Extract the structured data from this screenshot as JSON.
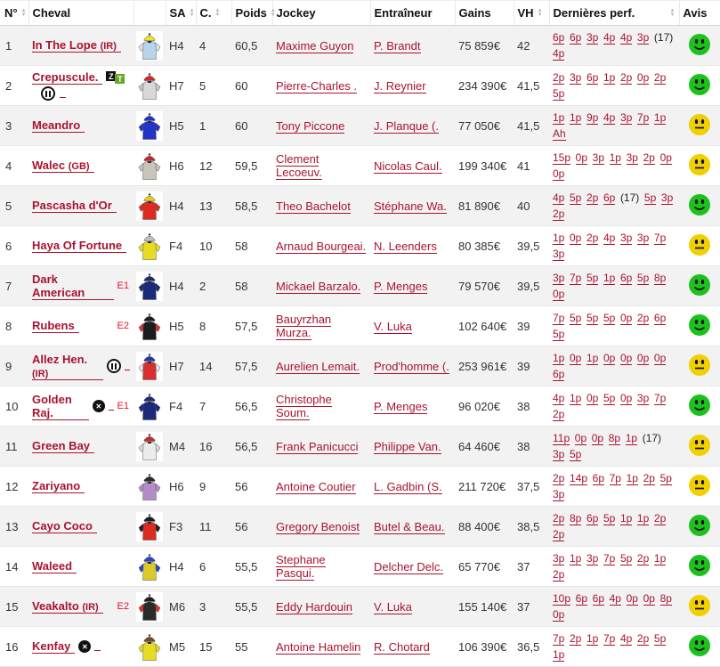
{
  "colors": {
    "link": "#a8142f",
    "tag_red": "#e8112d",
    "row_alt": "#f2f2f2",
    "smiley_green": "#1dc11d",
    "smiley_yellow": "#f0d000"
  },
  "table": {
    "columns": [
      {
        "key": "num",
        "label": "N°",
        "sortable": true
      },
      {
        "key": "cheval",
        "label": "Cheval",
        "sortable": false
      },
      {
        "key": "silks",
        "label": "",
        "sortable": false
      },
      {
        "key": "sa",
        "label": "SA",
        "sortable": true
      },
      {
        "key": "c",
        "label": "C.",
        "sortable": true
      },
      {
        "key": "poids",
        "label": "Poids",
        "sortable": true
      },
      {
        "key": "jockey",
        "label": "Jockey",
        "sortable": false
      },
      {
        "key": "trainer",
        "label": "Entraîneur",
        "sortable": false
      },
      {
        "key": "gains",
        "label": "Gains",
        "sortable": false
      },
      {
        "key": "vh",
        "label": "VH",
        "sortable": true
      },
      {
        "key": "perf",
        "label": "Dernières perf.",
        "sortable": true
      },
      {
        "key": "avis",
        "label": "Avis",
        "sortable": false
      }
    ],
    "rows": [
      {
        "num": "1",
        "horse": "In The Lope",
        "suffix": "(IR)",
        "zt": false,
        "blinkers": null,
        "circlex": false,
        "tag": "",
        "silks": {
          "cap": "#f2e31b",
          "body": "#b9d3ea",
          "sleeve": "#d8e6f4"
        },
        "sa": "H4",
        "c": "4",
        "poids": "60,5",
        "jockey": "Maxime Guyon",
        "trainer": "P. Brandt",
        "gains": "75 859€",
        "vh": "42",
        "perf": [
          "6p",
          "6p",
          "3p",
          "4p",
          "4p",
          "3p",
          "(17)",
          "4p"
        ],
        "avis": "green"
      },
      {
        "num": "2",
        "horse": "Crepuscule.",
        "suffix": "",
        "zt": true,
        "blinkers": "below",
        "circlex": false,
        "tag": "",
        "silks": {
          "cap": "#d42a2a",
          "body": "#d8d8d8",
          "sleeve": "#c9c9c9"
        },
        "sa": "H7",
        "c": "5",
        "poids": "60",
        "jockey": "Pierre-Charles .",
        "trainer": "J. Reynier",
        "gains": "234 390€",
        "vh": "41,5",
        "perf": [
          "2p",
          "3p",
          "6p",
          "1p",
          "2p",
          "0p",
          "2p",
          "5p"
        ],
        "avis": "green"
      },
      {
        "num": "3",
        "horse": "Meandro",
        "suffix": "",
        "zt": false,
        "blinkers": null,
        "circlex": false,
        "tag": "",
        "silks": {
          "cap": "#2433c8",
          "body": "#2433c8",
          "sleeve": "#2433c8"
        },
        "sa": "H5",
        "c": "1",
        "poids": "60",
        "jockey": "Tony Piccone",
        "trainer": "J. Planque (.",
        "gains": "77 050€",
        "vh": "41,5",
        "perf": [
          "1p",
          "1p",
          "9p",
          "4p",
          "3p",
          "7p",
          "1p",
          "Ah"
        ],
        "avis": "yellow"
      },
      {
        "num": "4",
        "horse": "Walec",
        "suffix": "(GB)",
        "zt": false,
        "blinkers": null,
        "circlex": false,
        "tag": "",
        "silks": {
          "cap": "#c8252f",
          "body": "#c9c4bc",
          "sleeve": "#c9c4bc"
        },
        "sa": "H6",
        "c": "12",
        "poids": "59,5",
        "jockey": "Clement Lecoeuv.",
        "trainer": "Nicolas Caul.",
        "gains": "199 340€",
        "vh": "41",
        "perf": [
          "15p",
          "0p",
          "3p",
          "1p",
          "3p",
          "2p",
          "0p",
          "0p"
        ],
        "avis": "yellow"
      },
      {
        "num": "5",
        "horse": "Pascasha d'Or",
        "suffix": "",
        "zt": false,
        "blinkers": null,
        "circlex": false,
        "tag": "",
        "silks": {
          "cap": "#e3cf13",
          "body": "#dc2b20",
          "sleeve": "#dc2b20"
        },
        "sa": "H4",
        "c": "13",
        "poids": "58,5",
        "jockey": "Theo Bachelot",
        "trainer": "Stéphane Wa.",
        "gains": "81 890€",
        "vh": "40",
        "perf": [
          "4p",
          "5p",
          "2p",
          "6p",
          "(17)",
          "5p",
          "3p",
          "2p"
        ],
        "avis": "green"
      },
      {
        "num": "6",
        "horse": "Haya Of Fortune",
        "suffix": "",
        "zt": false,
        "blinkers": null,
        "circlex": false,
        "tag": "",
        "silks": {
          "cap": "#b9c0c6",
          "body": "#e6dc23",
          "sleeve": "#e6dc23"
        },
        "sa": "F4",
        "c": "10",
        "poids": "58",
        "jockey": "Arnaud Bourgeai.",
        "trainer": "N. Leenders",
        "gains": "80 385€",
        "vh": "39,5",
        "perf": [
          "1p",
          "0p",
          "2p",
          "4p",
          "3p",
          "3p",
          "7p",
          "3p"
        ],
        "avis": "yellow"
      },
      {
        "num": "7",
        "horse": "Dark American",
        "suffix": "",
        "zt": false,
        "blinkers": null,
        "circlex": false,
        "tag": "E1",
        "silks": {
          "cap": "#1b2a7a",
          "body": "#1b2a7a",
          "sleeve": "#1b2a7a"
        },
        "sa": "H4",
        "c": "2",
        "poids": "58",
        "jockey": "Mickael Barzalo.",
        "trainer": "P. Menges",
        "gains": "79 570€",
        "vh": "39,5",
        "perf": [
          "3p",
          "7p",
          "5p",
          "1p",
          "6p",
          "5p",
          "8p",
          "0p"
        ],
        "avis": "green"
      },
      {
        "num": "8",
        "horse": "Rubens",
        "suffix": "",
        "zt": false,
        "blinkers": null,
        "circlex": false,
        "tag": "E2",
        "silks": {
          "cap": "#1d1d1d",
          "body": "#1d1d1d",
          "sleeve": "#e03030"
        },
        "sa": "H5",
        "c": "8",
        "poids": "57,5",
        "jockey": "Bauyrzhan Murza.",
        "trainer": "V. Luka",
        "gains": "102 640€",
        "vh": "39",
        "perf": [
          "7p",
          "5p",
          "5p",
          "5p",
          "0p",
          "2p",
          "6p",
          "5p"
        ],
        "avis": "green"
      },
      {
        "num": "9",
        "horse": "Allez Hen.",
        "suffix": "(IR)",
        "zt": false,
        "blinkers": "inline",
        "circlex": false,
        "tag": "",
        "silks": {
          "cap": "#2433a8",
          "body": "#d83030",
          "sleeve": "#e8e8e8"
        },
        "sa": "H7",
        "c": "14",
        "poids": "57,5",
        "jockey": "Aurelien Lemait.",
        "trainer": "Prod'homme (.",
        "gains": "253 961€",
        "vh": "39",
        "perf": [
          "1p",
          "0p",
          "1p",
          "0p",
          "0p",
          "0p",
          "0p",
          "6p"
        ],
        "avis": "yellow"
      },
      {
        "num": "10",
        "horse": "Golden Raj.",
        "suffix": "",
        "zt": false,
        "blinkers": null,
        "circlex": true,
        "tag": "E1",
        "silks": {
          "cap": "#1b2a7a",
          "body": "#1b2a7a",
          "sleeve": "#1b2a7a"
        },
        "sa": "F4",
        "c": "7",
        "poids": "56,5",
        "jockey": "Christophe Soum.",
        "trainer": "P. Menges",
        "gains": "96 020€",
        "vh": "38",
        "perf": [
          "4p",
          "1p",
          "0p",
          "5p",
          "0p",
          "3p",
          "7p",
          "2p"
        ],
        "avis": "green"
      },
      {
        "num": "11",
        "horse": "Green Bay",
        "suffix": "",
        "zt": false,
        "blinkers": null,
        "circlex": false,
        "tag": "",
        "silks": {
          "cap": "#cc2a2a",
          "body": "#ececec",
          "sleeve": "#e0dada"
        },
        "sa": "M4",
        "c": "16",
        "poids": "56,5",
        "jockey": "Frank Panicucci",
        "trainer": "Philippe Van.",
        "gains": "64 460€",
        "vh": "38",
        "perf": [
          "11p",
          "0p",
          "0p",
          "8p",
          "1p",
          "(17)",
          "3p",
          "5p"
        ],
        "avis": "yellow"
      },
      {
        "num": "12",
        "horse": "Zariyano",
        "suffix": "",
        "zt": false,
        "blinkers": null,
        "circlex": false,
        "tag": "",
        "silks": {
          "cap": "#2b2b2b",
          "body": "#b48cc8",
          "sleeve": "#b48cc8"
        },
        "sa": "H6",
        "c": "9",
        "poids": "56",
        "jockey": "Antoine Coutier",
        "trainer": "L. Gadbin (S.",
        "gains": "211 720€",
        "vh": "37,5",
        "perf": [
          "2p",
          "14p",
          "6p",
          "7p",
          "1p",
          "2p",
          "5p",
          "3p"
        ],
        "avis": "yellow"
      },
      {
        "num": "13",
        "horse": "Cayo Coco",
        "suffix": "",
        "zt": false,
        "blinkers": null,
        "circlex": false,
        "tag": "",
        "silks": {
          "cap": "#1d1d1d",
          "body": "#dc2b20",
          "sleeve": "#1d1d1d"
        },
        "sa": "F3",
        "c": "11",
        "poids": "56",
        "jockey": "Gregory Benoist",
        "trainer": "Butel & Beau.",
        "gains": "88 400€",
        "vh": "38,5",
        "perf": [
          "2p",
          "8p",
          "6p",
          "5p",
          "1p",
          "1p",
          "2p",
          "2p"
        ],
        "avis": "green"
      },
      {
        "num": "14",
        "horse": "Waleed",
        "suffix": "",
        "zt": false,
        "blinkers": null,
        "circlex": false,
        "tag": "",
        "silks": {
          "cap": "#2a44c8",
          "body": "#d9c929",
          "sleeve": "#2a44c8"
        },
        "sa": "H4",
        "c": "6",
        "poids": "55,5",
        "jockey": "Stephane Pasqui.",
        "trainer": "Delcher Delc.",
        "gains": "65 770€",
        "vh": "37",
        "perf": [
          "3p",
          "1p",
          "3p",
          "7p",
          "5p",
          "2p",
          "1p",
          "2p"
        ],
        "avis": "green"
      },
      {
        "num": "15",
        "horse": "Veakalto",
        "suffix": "(IR)",
        "zt": false,
        "blinkers": null,
        "circlex": false,
        "tag": "E2",
        "silks": {
          "cap": "#1d1d1d",
          "body": "#2b2b2b",
          "sleeve": "#e03030"
        },
        "sa": "M6",
        "c": "3",
        "poids": "55,5",
        "jockey": "Eddy Hardouin",
        "trainer": "V. Luka",
        "gains": "155 140€",
        "vh": "37",
        "perf": [
          "10p",
          "6p",
          "6p",
          "4p",
          "0p",
          "0p",
          "8p",
          "0p"
        ],
        "avis": "yellow"
      },
      {
        "num": "16",
        "horse": "Kenfay",
        "suffix": "",
        "zt": false,
        "blinkers": null,
        "circlex": true,
        "tag": "",
        "silks": {
          "cap": "#7a4a21",
          "body": "#e6dc23",
          "sleeve": "#e6dc23"
        },
        "sa": "M5",
        "c": "15",
        "poids": "55",
        "jockey": "Antoine Hamelin",
        "trainer": "R. Chotard",
        "gains": "106 390€",
        "vh": "36,5",
        "perf": [
          "7p",
          "2p",
          "1p",
          "7p",
          "4p",
          "2p",
          "5p",
          "1p"
        ],
        "avis": "green"
      }
    ]
  }
}
